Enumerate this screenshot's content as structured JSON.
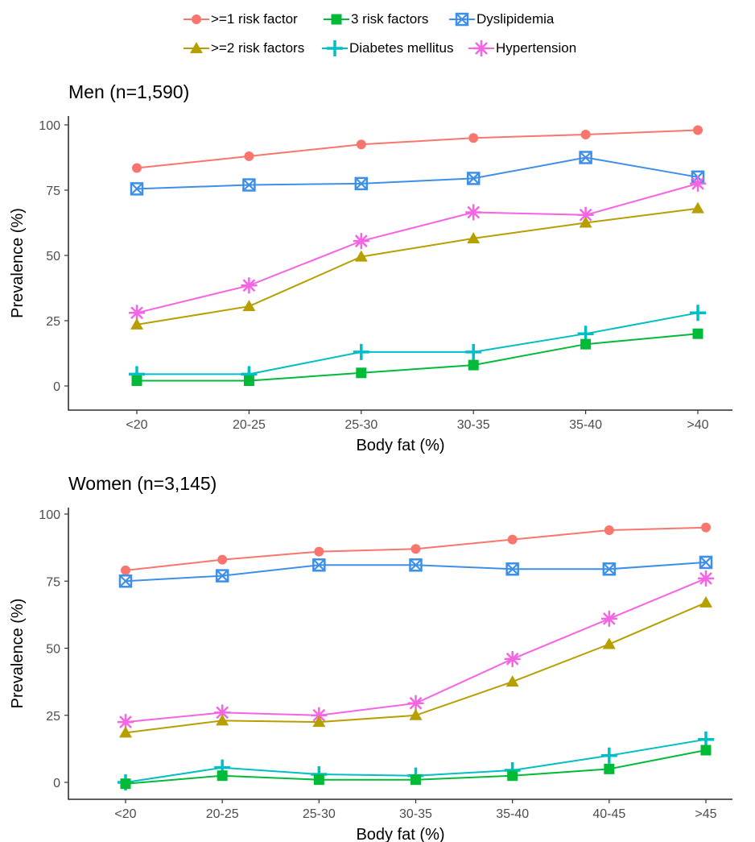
{
  "legend": {
    "items": [
      {
        "name": ">=1 risk factor",
        "color": "#F8766D",
        "marker": "circle"
      },
      {
        "name": "3 risk factors",
        "color": "#00BA38",
        "marker": "square"
      },
      {
        "name": "Dyslipidemia",
        "color": "#3E8FE8",
        "marker": "square-x"
      },
      {
        "name": ">=2 risk factors",
        "color": "#B79F00",
        "marker": "triangle"
      },
      {
        "name": "Diabetes mellitus",
        "color": "#00BFC4",
        "marker": "plus"
      },
      {
        "name": "Hypertension",
        "color": "#F564E3",
        "marker": "asterisk"
      }
    ]
  },
  "chart_data": [
    {
      "type": "line",
      "title": "Men (n=1,590)",
      "xlabel": "Body fat (%)",
      "ylabel": "Prevalence (%)",
      "categories": [
        "<20",
        "20-25",
        "25-30",
        "30-35",
        "35-40",
        ">40"
      ],
      "ylim": [
        0,
        100
      ],
      "yticks": [
        0,
        25,
        50,
        75,
        100
      ],
      "series": [
        {
          "name": ">=1 risk factor",
          "values": [
            83.5,
            88,
            92.5,
            95,
            96.3,
            98
          ]
        },
        {
          "name": "Dyslipidemia",
          "values": [
            75.5,
            77,
            77.5,
            79.5,
            87.5,
            80
          ]
        },
        {
          "name": "Hypertension",
          "values": [
            28,
            38.5,
            55.5,
            66.5,
            65.5,
            77.5
          ]
        },
        {
          "name": ">=2 risk factors",
          "values": [
            23.5,
            30.5,
            49.5,
            56.5,
            62.5,
            68
          ]
        },
        {
          "name": "Diabetes mellitus",
          "values": [
            4.5,
            4.5,
            13,
            13,
            20,
            28
          ]
        },
        {
          "name": "3 risk factors",
          "values": [
            2,
            2,
            5,
            8,
            16,
            20
          ]
        }
      ]
    },
    {
      "type": "line",
      "title": "Women (n=3,145)",
      "xlabel": "Body fat (%)",
      "ylabel": "Prevalence (%)",
      "categories": [
        "<20",
        "20-25",
        "25-30",
        "30-35",
        "35-40",
        "40-45",
        ">45"
      ],
      "ylim": [
        0,
        100
      ],
      "yticks": [
        0,
        25,
        50,
        75,
        100
      ],
      "series": [
        {
          "name": ">=1 risk factor",
          "values": [
            79,
            83,
            86,
            87,
            90.5,
            94,
            95
          ]
        },
        {
          "name": "Dyslipidemia",
          "values": [
            75,
            77,
            81,
            81,
            79.5,
            79.5,
            82
          ]
        },
        {
          "name": "Hypertension",
          "values": [
            22.5,
            26,
            25,
            29.5,
            46,
            61,
            76
          ]
        },
        {
          "name": ">=2 risk factors",
          "values": [
            18.5,
            23,
            22.5,
            25,
            37.5,
            51.5,
            67
          ]
        },
        {
          "name": "Diabetes mellitus",
          "values": [
            0,
            5.5,
            3,
            2.5,
            4.5,
            10,
            16
          ]
        },
        {
          "name": "3 risk factors",
          "values": [
            -0.5,
            2.5,
            1,
            1,
            2.5,
            5,
            12
          ]
        }
      ]
    }
  ]
}
